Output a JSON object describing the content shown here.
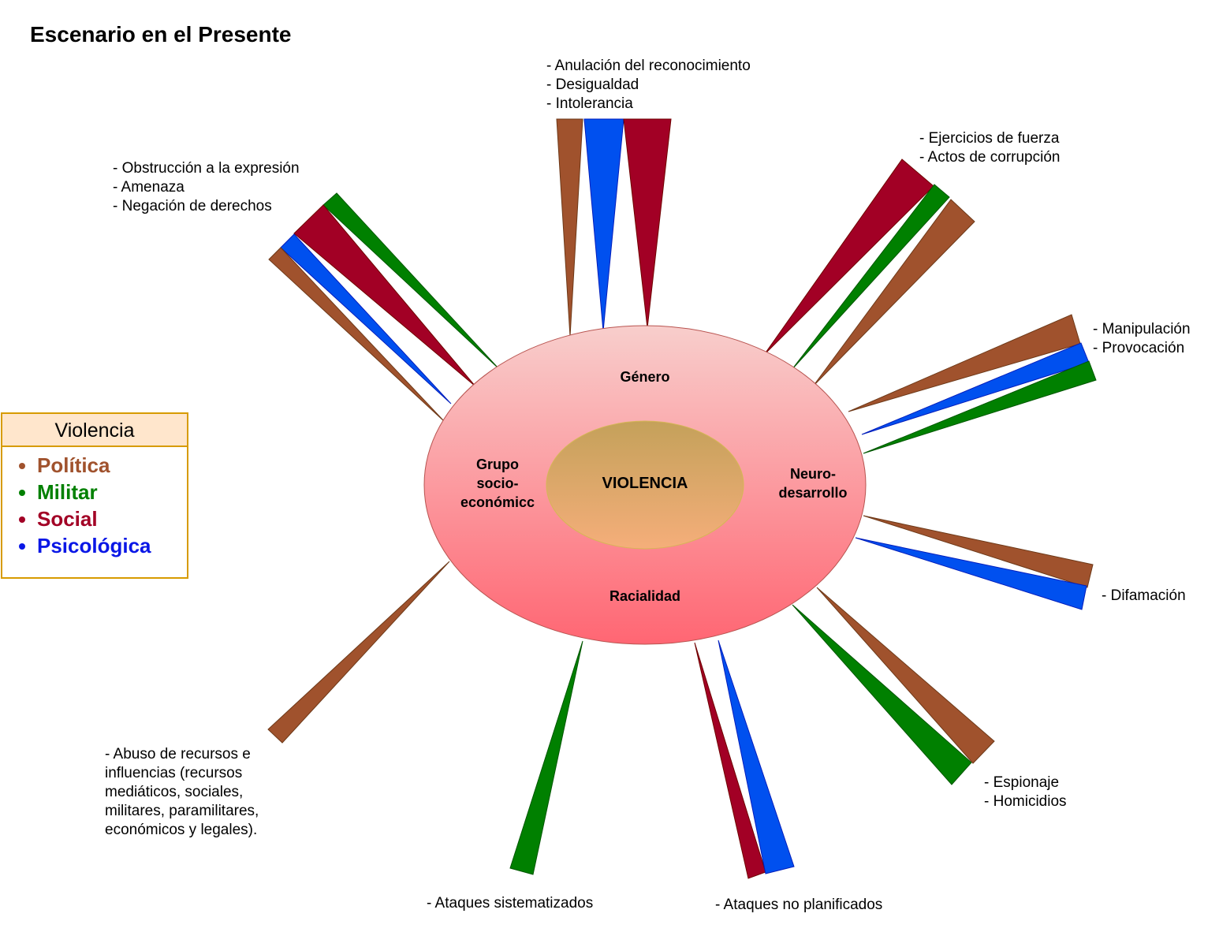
{
  "title": "Escenario en el Presente",
  "colors": {
    "politica": "#A0522D",
    "militar": "#008000",
    "social": "#A20025",
    "psicologica": "#0050EF",
    "legend_border": "#D79B00",
    "legend_header": "#FFE6CC"
  },
  "core": {
    "center_label": "VIOLENCIA",
    "sections": {
      "top": "Género",
      "left_line1": "Grupo",
      "left_line2": "socio-",
      "left_line3": "económicc",
      "right_line1": "Neuro-",
      "right_line2": "desarrollo",
      "bottom": "Racialidad"
    }
  },
  "legend": {
    "header": "Violencia",
    "items": [
      {
        "label": "Política",
        "color": "#A0522D"
      },
      {
        "label": "Militar",
        "color": "#008000"
      },
      {
        "label": "Social",
        "color": "#A20025"
      },
      {
        "label": "Psicológica",
        "color": "#0050EF"
      }
    ]
  },
  "annotations": {
    "top": [
      "- Anulación del reconocimiento",
      "- Desigualdad",
      "- Intolerancia"
    ],
    "top_right": [
      "- Ejercicios de fuerza",
      "- Actos de corrupción"
    ],
    "right_upper": [
      "- Manipulación",
      "- Provocación"
    ],
    "right_lower": [
      "- Difamación"
    ],
    "bottom_right": [
      "- Espionaje",
      "- Homicidios"
    ],
    "bottom_center": [
      "- Ataques no planificados"
    ],
    "bottom_left_center": [
      "- Ataques sistematizados"
    ],
    "bottom_left": "- Abuso de recursos e influencias (recursos mediáticos, sociales, militares, paramilitares, económicos y legales).",
    "top_left": [
      "- Obstrucción a la expresión",
      "- Amenaza",
      "- Negación de derechos"
    ]
  }
}
